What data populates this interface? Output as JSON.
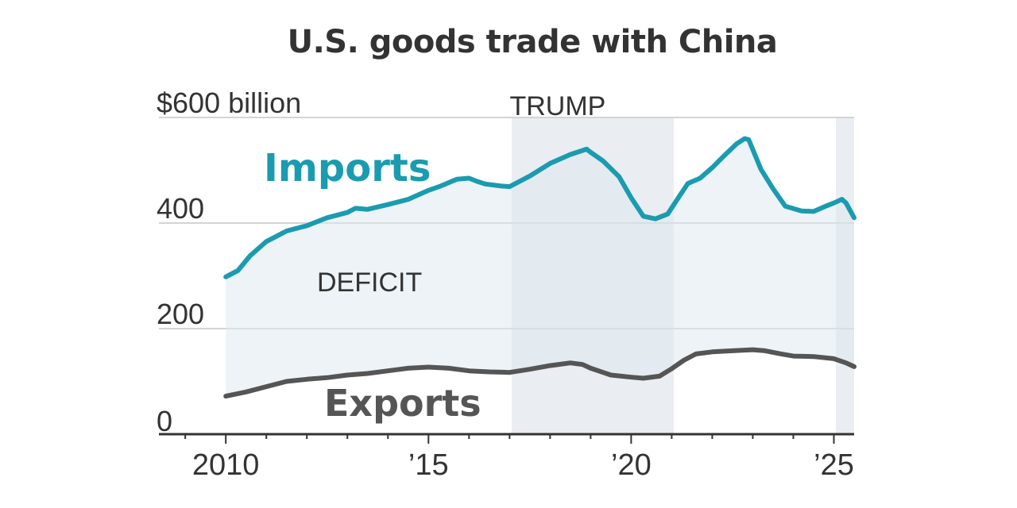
{
  "chart_data": {
    "type": "area",
    "title": "U.S. goods trade with China",
    "y_unit_label": "$600 billion",
    "ylim": [
      0,
      600
    ],
    "xlim": [
      2008.35,
      2025.5
    ],
    "y_ticks": [
      {
        "value": 0,
        "label": "0"
      },
      {
        "value": 200,
        "label": "200"
      },
      {
        "value": 400,
        "label": "400"
      },
      {
        "value": 600,
        "label": "$600 billion"
      }
    ],
    "x_ticks": [
      {
        "value": 2010,
        "label": "2010"
      },
      {
        "value": 2015,
        "label": "’15"
      },
      {
        "value": 2020,
        "label": "’20"
      },
      {
        "value": 2025,
        "label": "’25"
      }
    ],
    "grid": true,
    "shaded_periods": [
      {
        "label": "TRUMP",
        "start": 2017.05,
        "end": 2021.05
      },
      {
        "label": "",
        "start": 2025.05,
        "end": 2025.5
      }
    ],
    "fill_label": "DEFICIT",
    "series": [
      {
        "name": "Imports",
        "color": "#1a9bb0",
        "x": [
          2010.0,
          2010.3,
          2010.6,
          2011.0,
          2011.5,
          2012.0,
          2012.5,
          2013.0,
          2013.2,
          2013.5,
          2014.0,
          2014.5,
          2015.0,
          2015.3,
          2015.7,
          2016.0,
          2016.2,
          2016.4,
          2016.8,
          2017.0,
          2017.5,
          2018.0,
          2018.5,
          2018.9,
          2019.0,
          2019.3,
          2019.7,
          2020.0,
          2020.3,
          2020.6,
          2020.9,
          2021.2,
          2021.4,
          2021.7,
          2022.0,
          2022.3,
          2022.6,
          2022.8,
          2022.9,
          2023.2,
          2023.5,
          2023.8,
          2024.2,
          2024.5,
          2024.8,
          2025.0,
          2025.2,
          2025.3,
          2025.5
        ],
        "values": [
          298,
          310,
          338,
          365,
          385,
          395,
          410,
          420,
          428,
          426,
          435,
          445,
          462,
          470,
          483,
          485,
          479,
          474,
          470,
          469,
          489,
          513,
          530,
          540,
          534,
          518,
          488,
          448,
          413,
          408,
          417,
          452,
          475,
          485,
          505,
          528,
          550,
          560,
          558,
          502,
          465,
          432,
          423,
          422,
          432,
          438,
          445,
          438,
          410
        ]
      },
      {
        "name": "Exports",
        "color": "#555555",
        "x": [
          2010.0,
          2010.5,
          2011.0,
          2011.5,
          2012.0,
          2012.5,
          2013.0,
          2013.5,
          2014.0,
          2014.5,
          2015.0,
          2015.5,
          2016.0,
          2016.5,
          2017.0,
          2017.5,
          2018.0,
          2018.5,
          2018.8,
          2019.0,
          2019.5,
          2020.0,
          2020.3,
          2020.7,
          2021.0,
          2021.3,
          2021.6,
          2022.0,
          2022.5,
          2023.0,
          2023.3,
          2023.7,
          2024.0,
          2024.5,
          2025.0,
          2025.3,
          2025.5
        ],
        "values": [
          72,
          80,
          90,
          100,
          104,
          107,
          112,
          115,
          120,
          125,
          127,
          125,
          120,
          118,
          117,
          123,
          130,
          135,
          132,
          125,
          112,
          108,
          106,
          110,
          124,
          140,
          152,
          156,
          158,
          160,
          158,
          152,
          148,
          147,
          143,
          135,
          128
        ]
      }
    ],
    "series_labels": [
      "Imports",
      "Exports"
    ]
  }
}
